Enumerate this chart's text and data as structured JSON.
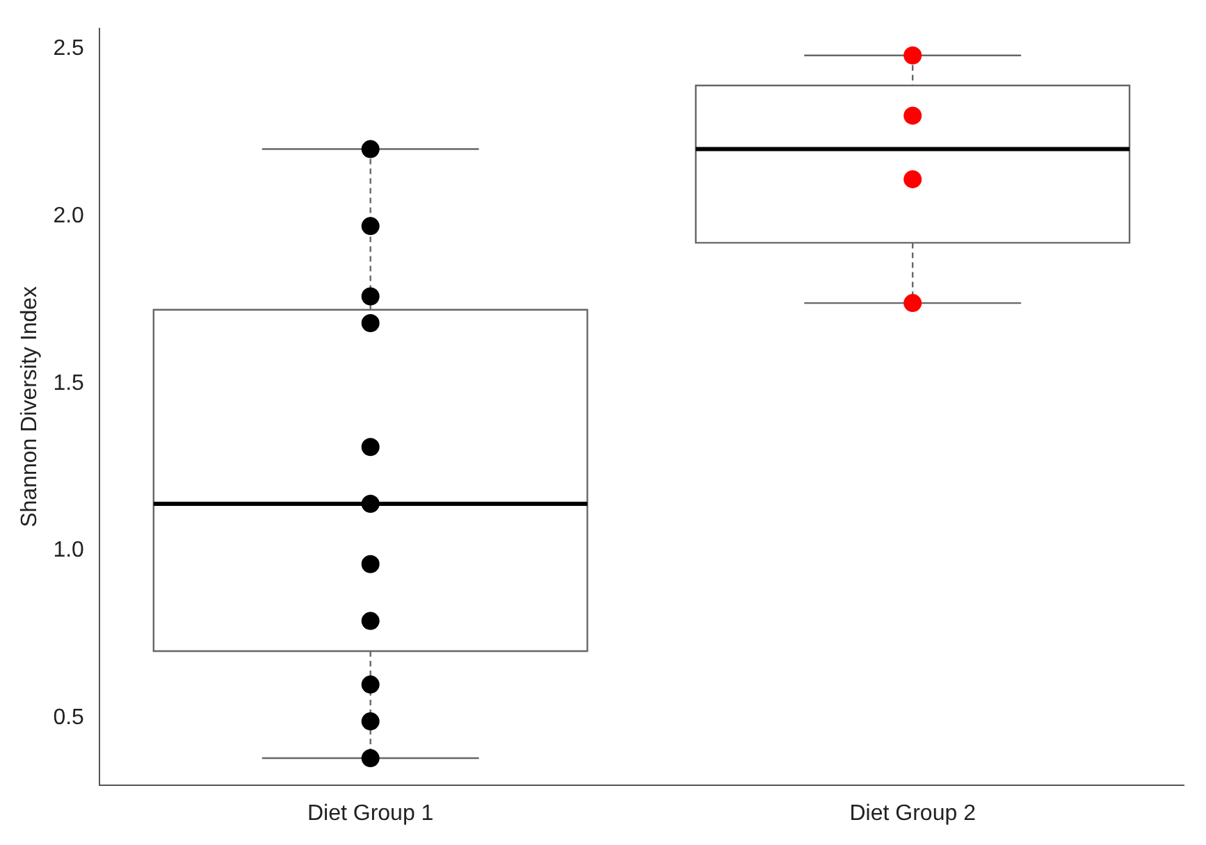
{
  "chart_data": {
    "type": "box",
    "ylabel": "Shannon Diversity Index",
    "categories": [
      "Diet Group 1",
      "Diet Group 2"
    ],
    "boxes": [
      {
        "low": 0.38,
        "q1": 0.7,
        "median": 1.14,
        "q3": 1.72,
        "high": 2.2
      },
      {
        "low": 1.74,
        "q1": 1.92,
        "median": 2.2,
        "q3": 2.39,
        "high": 2.48
      }
    ],
    "ylim": [
      0.3,
      2.56
    ],
    "yticks": [
      0.5,
      {
        "value": 1,
        "label": "1.0"
      },
      1.5,
      {
        "value": 2,
        "label": "2.0"
      },
      2.5
    ],
    "grid": false,
    "marker": "circle",
    "series": [
      {
        "type": "scatter",
        "color": "#000000",
        "x": [
          "Diet Group 1",
          "Diet Group 1",
          "Diet Group 1",
          "Diet Group 1",
          "Diet Group 1",
          "Diet Group 1",
          "Diet Group 1",
          "Diet Group 1",
          "Diet Group 1",
          "Diet Group 1",
          "Diet Group 1"
        ],
        "values": [
          2.2,
          1.97,
          1.76,
          1.68,
          1.31,
          1.14,
          0.96,
          0.79,
          0.6,
          0.49,
          0.38
        ]
      },
      {
        "type": "scatter",
        "color": "#ff0000",
        "x": [
          "Diet Group 2",
          "Diet Group 2",
          "Diet Group 2",
          "Diet Group 2"
        ],
        "values": [
          2.48,
          2.3,
          2.11,
          1.74
        ]
      }
    ]
  }
}
